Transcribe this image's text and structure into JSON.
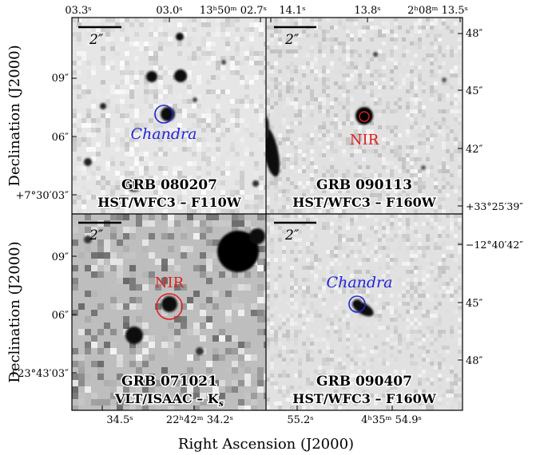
{
  "axes": {
    "xlabel": "Right Ascension (J2000)",
    "ylabel_top": "Declination (J2000)",
    "ylabel_bottom": "Declination (J2000)"
  },
  "panels": [
    {
      "id": "grb080207",
      "grb": "GRB 080207",
      "instrument": "HST/WFC3 – F110W",
      "marker": "Chandra",
      "marker_color": "#2424d8",
      "scalebar": "2″",
      "ra_ticks": [
        "03.3ˢ",
        "03.0ˢ",
        "13ʰ50ᵐ 02.7ˢ"
      ],
      "dec_ticks": [
        "09″",
        "06″",
        "+7°30′03″"
      ]
    },
    {
      "id": "grb090113",
      "grb": "GRB 090113",
      "instrument": "HST/WFC3 – F160W",
      "marker": "NIR",
      "marker_color": "#e02020",
      "scalebar": "2″",
      "ra_ticks": [
        "14.1ˢ",
        "13.8ˢ",
        "2ʰ08ᵐ 13.5ˢ"
      ],
      "dec_ticks": [
        "48″",
        "45″",
        "42″",
        "+33°25′39″"
      ]
    },
    {
      "id": "grb071021",
      "grb": "GRB 071021",
      "instrument": "VLT/ISAAC – K",
      "instrument_sub": "s",
      "marker": "NIR",
      "marker_color": "#e02020",
      "scalebar": "2″",
      "ra_ticks": [
        "34.5ˢ",
        "22ʰ42ᵐ 34.2ˢ"
      ],
      "dec_ticks": [
        "09″",
        "06″",
        "+23°43′03″"
      ]
    },
    {
      "id": "grb090407",
      "grb": "GRB 090407",
      "instrument": "HST/WFC3 – F160W",
      "marker": "Chandra",
      "marker_color": "#2424d8",
      "scalebar": "2″",
      "ra_ticks": [
        "55.2ˢ",
        "4ʰ35ᵐ 54.9ˢ"
      ],
      "dec_ticks": [
        "−12°40′42″",
        "45″",
        "48″"
      ]
    }
  ]
}
